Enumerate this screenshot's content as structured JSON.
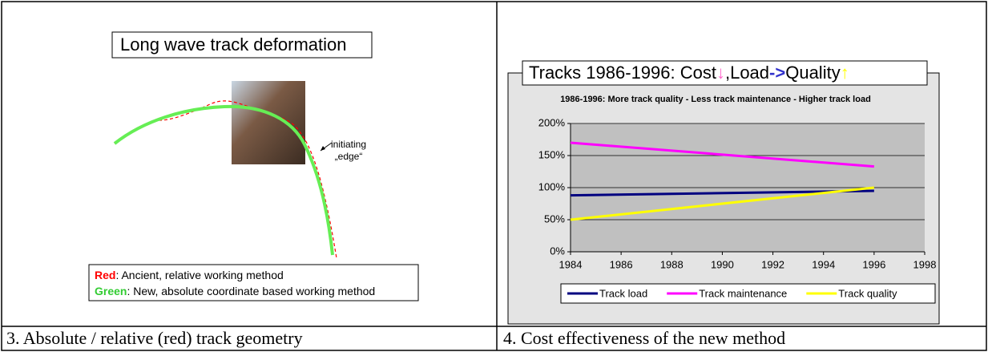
{
  "left_panel": {
    "title": "Long wave track deformation",
    "annotation": [
      "initiating",
      "„edge“"
    ],
    "legend": [
      {
        "key": "Red",
        "color": "#ff0000",
        "text": ": Ancient, relative working method"
      },
      {
        "key": "Green",
        "color": "#33cc33",
        "text": ": New, absolute coordinate based working method"
      }
    ]
  },
  "captions": [
    "3. Absolute / relative (red) track geometry",
    "4. Cost effectiveness of the new method"
  ],
  "chart_data": {
    "type": "line",
    "title": [
      {
        "text": "Tracks 1986-1996: Cost",
        "color": "#000000"
      },
      {
        "text": "↓",
        "color": "#ff66cc"
      },
      {
        "text": ",Load",
        "color": "#000000"
      },
      {
        "text": "->",
        "color": "#3333cc"
      },
      {
        "text": "Quality",
        "color": "#000000"
      },
      {
        "text": "↑",
        "color": "#ffff00"
      }
    ],
    "subtitle": "1986-1996: More track quality - Less track maintenance - Higher track load",
    "x": [
      1984,
      1996
    ],
    "xlim": [
      1984,
      1998
    ],
    "xticks": [
      1984,
      1986,
      1988,
      1990,
      1992,
      1994,
      1996,
      1998
    ],
    "ylim": [
      0,
      200
    ],
    "yticks": [
      {
        "value": 0,
        "label": "0%"
      },
      {
        "value": 50,
        "label": "50%"
      },
      {
        "value": 100,
        "label": "100%"
      },
      {
        "value": 150,
        "label": "150%"
      },
      {
        "value": 200,
        "label": "200%"
      }
    ],
    "grid": true,
    "series": [
      {
        "name": "Track load",
        "color": "#000080",
        "values": [
          88,
          95
        ]
      },
      {
        "name": "Track maintenance",
        "color": "#ff00ff",
        "values": [
          170,
          133
        ]
      },
      {
        "name": "Track quality",
        "color": "#ffff00",
        "values": [
          50,
          100
        ]
      }
    ]
  }
}
